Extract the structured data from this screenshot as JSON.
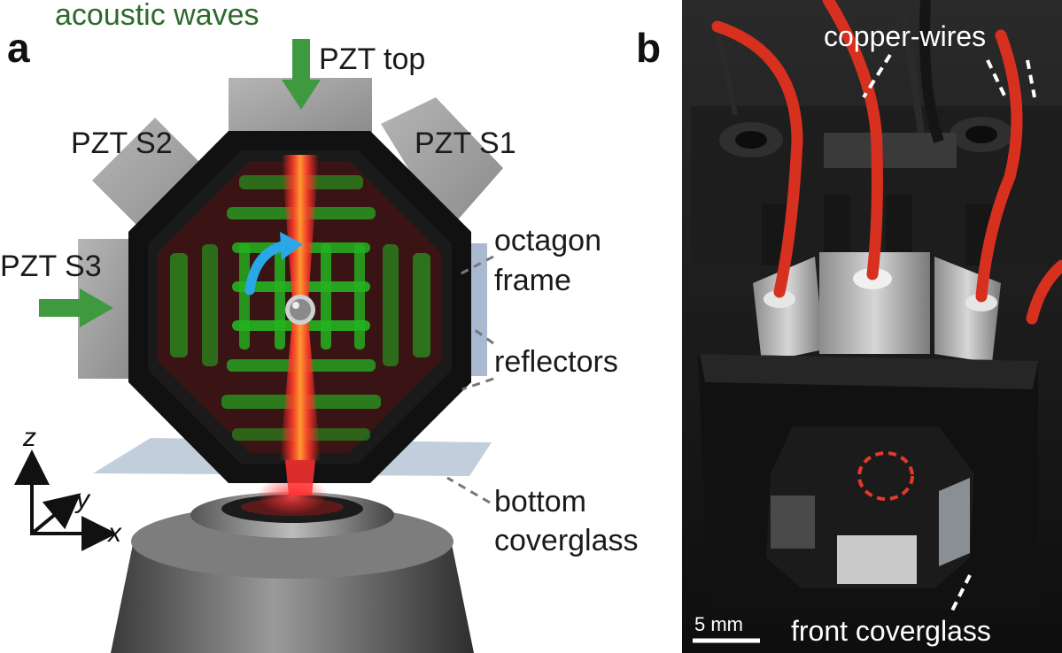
{
  "panel_a": {
    "letter": "a",
    "acoustic_waves": "acoustic  waves",
    "pzt_top": "PZT top",
    "pzt_s1": "PZT S1",
    "pzt_s2": "PZT S2",
    "pzt_s3": "PZT S3",
    "octagon_frame_line1": "octagon",
    "octagon_frame_line2": "frame",
    "reflectors": "reflectors",
    "bottom_coverglass_line1": "bottom",
    "bottom_coverglass_line2": "coverglass",
    "axis_z": "z",
    "axis_y": "y",
    "axis_x": "x"
  },
  "panel_b": {
    "letter": "b",
    "copper_wires": "copper-wires",
    "front_coverglass": "front coverglass",
    "scale_bar": "5 mm"
  },
  "colors": {
    "arrow_green": "#3f9a3f",
    "beam_red": "#ff2a2a",
    "wave_green": "#22c422",
    "frame_black": "#111111",
    "pzt_gray": "#9a9a9a",
    "wire_red": "#d8301f",
    "curve_arrow_blue": "#2aa7e6"
  }
}
